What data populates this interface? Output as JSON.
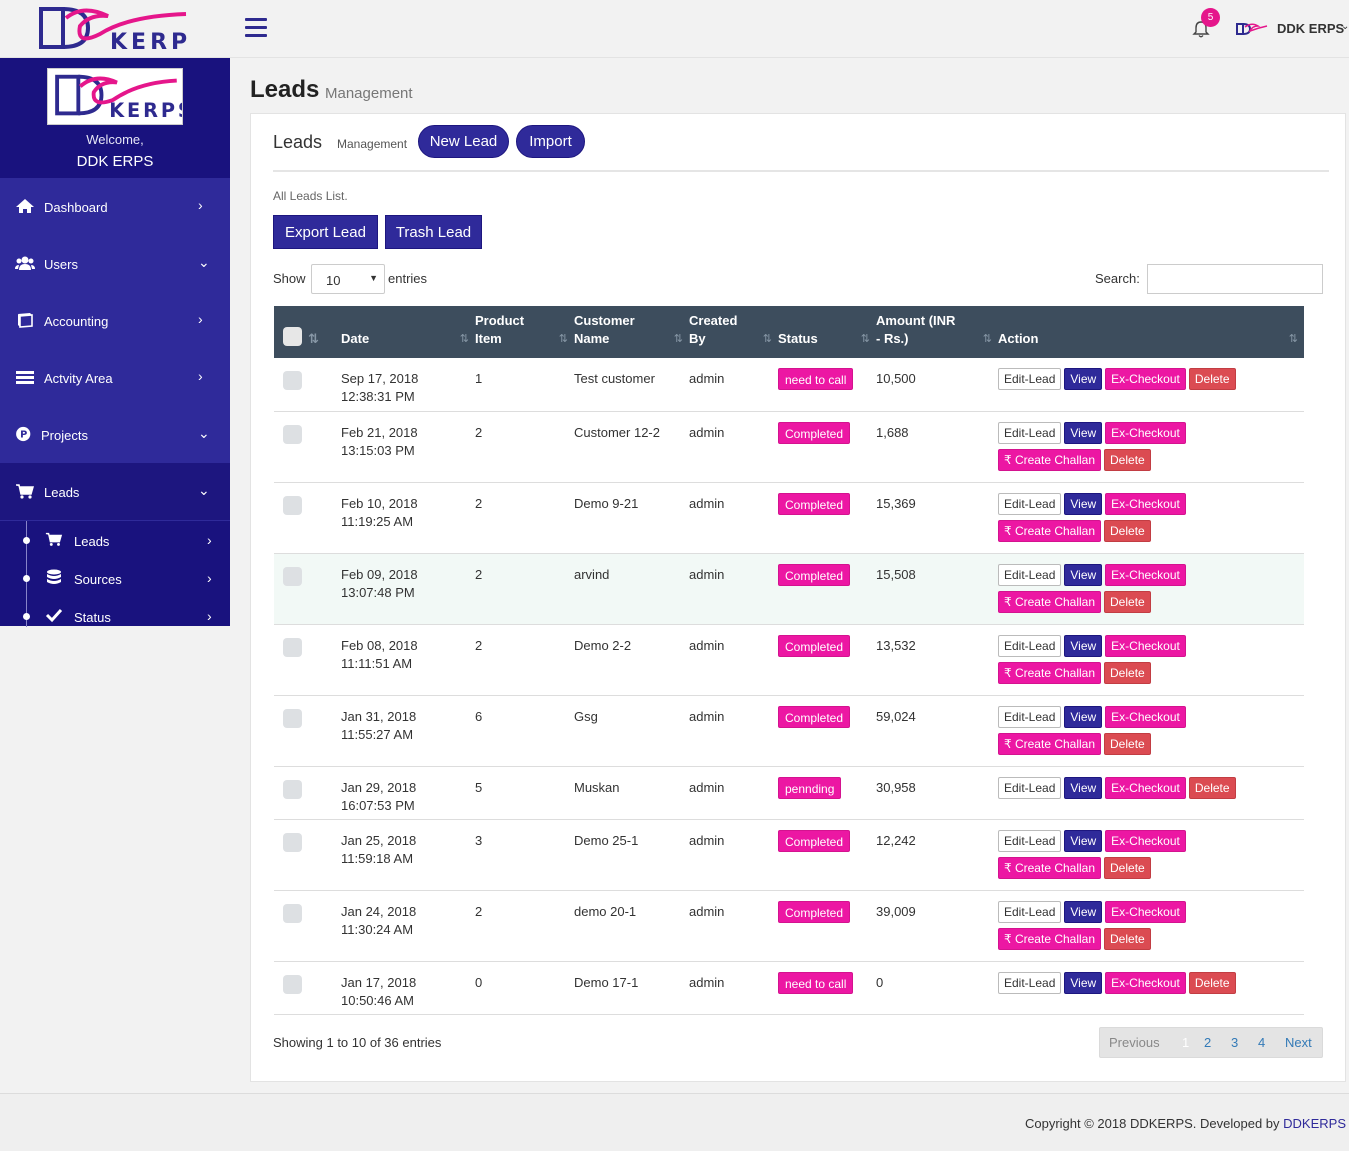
{
  "brand": {
    "logo_text": "KERPS",
    "name": "DDK ERPS"
  },
  "topbar": {
    "notifications_count": "5",
    "user_name": "DDK ERPS",
    "user_chevron": "⌄"
  },
  "sidebar": {
    "welcome": "Welcome,",
    "user": "DDK ERPS",
    "items": [
      {
        "label": "Dashboard",
        "icon": "home-icon",
        "arrow": "›"
      },
      {
        "label": "Users",
        "icon": "users-icon",
        "arrow": "⌄"
      },
      {
        "label": "Accounting",
        "icon": "book-icon",
        "arrow": "›"
      },
      {
        "label": "Actvity Area",
        "icon": "list-icon",
        "arrow": "›"
      },
      {
        "label": "Projects",
        "icon": "p-circle-icon",
        "arrow": "⌄"
      },
      {
        "label": "Leads",
        "icon": "cart-icon",
        "arrow": "⌄"
      }
    ],
    "subitems": [
      {
        "label": "Leads",
        "icon": "cart-icon",
        "arrow": "›"
      },
      {
        "label": "Sources",
        "icon": "database-icon",
        "arrow": "›"
      },
      {
        "label": "Status",
        "icon": "check-icon",
        "arrow": "›"
      }
    ]
  },
  "page": {
    "title": "Leads",
    "subtitle": "Management"
  },
  "panel": {
    "title": "Leads",
    "subtitle": "Management",
    "new_lead": "New Lead",
    "import": "Import",
    "all_list": "All Leads List.",
    "export_lead": "Export Lead",
    "trash_lead": "Trash Lead",
    "show_label": "Show",
    "show_value": "10",
    "entries_label": "entries",
    "search_label": "Search:",
    "search_value": ""
  },
  "table": {
    "headers": {
      "date": "Date",
      "product": "Product Item",
      "customer": "Customer Name",
      "created": "Created By",
      "status": "Status",
      "amount": "Amount (INR - Rs.)",
      "action": "Action"
    },
    "action_labels": {
      "edit": "Edit-Lead",
      "view": "View",
      "exc": "Ex-Checkout",
      "chal": "₹ Create Challan",
      "del": "Delete"
    },
    "rows": [
      {
        "date": "Sep 17, 2018",
        "time": "12:38:31 PM",
        "product": "1",
        "customer": "Test customer",
        "created": "admin",
        "status": "need to call",
        "amount": "10,500"
      },
      {
        "date": "Feb 21, 2018",
        "time": "13:15:03 PM",
        "product": "2",
        "customer": "Customer 12-2",
        "created": "admin",
        "status": "Completed",
        "amount": "1,688"
      },
      {
        "date": "Feb 10, 2018",
        "time": "11:19:25 AM",
        "product": "2",
        "customer": "Demo 9-21",
        "created": "admin",
        "status": "Completed",
        "amount": "15,369"
      },
      {
        "date": "Feb 09, 2018",
        "time": "13:07:48 PM",
        "product": "2",
        "customer": "arvind",
        "created": "admin",
        "status": "Completed",
        "amount": "15,508"
      },
      {
        "date": "Feb 08, 2018",
        "time": "11:11:51 AM",
        "product": "2",
        "customer": "Demo 2-2",
        "created": "admin",
        "status": "Completed",
        "amount": "13,532"
      },
      {
        "date": "Jan 31, 2018",
        "time": "11:55:27 AM",
        "product": "6",
        "customer": "Gsg",
        "created": "admin",
        "status": "Completed",
        "amount": "59,024"
      },
      {
        "date": "Jan 29, 2018",
        "time": "16:07:53 PM",
        "product": "5",
        "customer": "Muskan",
        "created": "admin",
        "status": "pennding",
        "amount": "30,958"
      },
      {
        "date": "Jan 25, 2018",
        "time": "11:59:18 AM",
        "product": "3",
        "customer": "Demo 25-1",
        "created": "admin",
        "status": "Completed",
        "amount": "12,242"
      },
      {
        "date": "Jan 24, 2018",
        "time": "11:30:24 AM",
        "product": "2",
        "customer": "demo 20-1",
        "created": "admin",
        "status": "Completed",
        "amount": "39,009"
      },
      {
        "date": "Jan 17, 2018",
        "time": "10:50:46 AM",
        "product": "0",
        "customer": "Demo 17-1",
        "created": "admin",
        "status": "need to call",
        "amount": "0"
      }
    ]
  },
  "pagination": {
    "showing": "Showing 1 to 10 of 36 entries",
    "previous": "Previous",
    "pages": [
      "1",
      "2",
      "3",
      "4"
    ],
    "next": "Next"
  },
  "footer": {
    "text": "Copyright © 2018 DDKERPS. Developed by",
    "link": "DDKERPS"
  }
}
